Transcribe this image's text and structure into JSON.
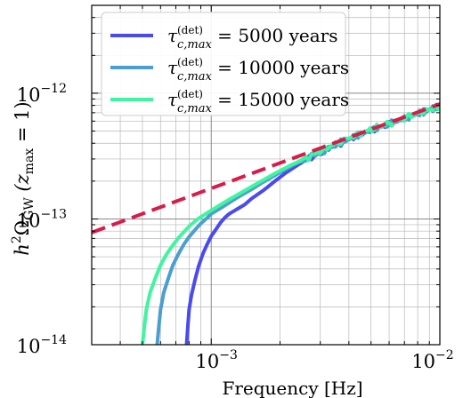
{
  "chart_data": {
    "type": "line",
    "title": "",
    "xlabel": "Frequency [Hz]",
    "ylabel": "h²Ω_GW (z_max = 1)",
    "ylabel_parts": {
      "main": "h",
      "sup": "2",
      "omega": "Ω",
      "sub": "GW",
      "paren": "(z",
      "paren_sub": "max",
      "paren_rest": " = 1)"
    },
    "x_scale": "log",
    "y_scale": "log",
    "xlim": [
      0.0003,
      0.01
    ],
    "ylim": [
      1e-14,
      5e-12
    ],
    "x_ticks": [
      {
        "value": 0.001,
        "base": "10",
        "exp": "−3"
      },
      {
        "value": 0.01,
        "base": "10",
        "exp": "−2"
      }
    ],
    "y_ticks": [
      {
        "value": 1e-14,
        "base": "10",
        "exp": "−14"
      },
      {
        "value": 1e-13,
        "base": "10",
        "exp": "−13"
      },
      {
        "value": 1e-12,
        "base": "10",
        "exp": "−12"
      }
    ],
    "grid": true,
    "legend_position": "top-left",
    "series": [
      {
        "name": "τc,max(det) = 5000 years",
        "label_parts": {
          "value": "5000 years"
        },
        "color": "#4a4af0",
        "points": [
          [
            0.00078,
            1e-14
          ],
          [
            0.00079,
            1.4e-14
          ],
          [
            0.0008,
            1.9e-14
          ],
          [
            0.00082,
            2.5e-14
          ],
          [
            0.00085,
            3.3e-14
          ],
          [
            0.00088,
            4.2e-14
          ],
          [
            0.00092,
            5.3e-14
          ],
          [
            0.00096,
            6.3e-14
          ],
          [
            0.001,
            7.3e-14
          ],
          [
            0.00106,
            8.5e-14
          ],
          [
            0.0011,
            9.4e-14
          ],
          [
            0.00115,
            1.03e-13
          ],
          [
            0.0012,
            1.1e-13
          ],
          [
            0.0013,
            1.2e-13
          ],
          [
            0.0014,
            1.3e-13
          ],
          [
            0.0015,
            1.45e-13
          ],
          [
            0.0017,
            1.7e-13
          ],
          [
            0.0019,
            2e-13
          ],
          [
            0.0021,
            2.3e-13
          ],
          [
            0.0024,
            2.7e-13
          ],
          [
            0.0027,
            3.05e-13
          ],
          [
            0.003,
            3.35e-13
          ],
          [
            0.0034,
            3.8e-13
          ],
          [
            0.004,
            4.3e-13
          ],
          [
            0.0046,
            4.8e-13
          ],
          [
            0.0053,
            5.3e-13
          ],
          [
            0.006,
            5.7e-13
          ],
          [
            0.007,
            6.3e-13
          ],
          [
            0.008,
            6.9e-13
          ],
          [
            0.009,
            7.4e-13
          ],
          [
            0.01,
            7.9e-13
          ]
        ]
      },
      {
        "name": "τc,max(det) = 10000 years",
        "label_parts": {
          "value": "10000 years"
        },
        "color": "#4a9fd0",
        "points": [
          [
            0.00058,
            1e-14
          ],
          [
            0.00059,
            1.4e-14
          ],
          [
            0.0006,
            1.9e-14
          ],
          [
            0.00062,
            2.6e-14
          ],
          [
            0.00065,
            3.4e-14
          ],
          [
            0.00068,
            4.3e-14
          ],
          [
            0.00072,
            5.3e-14
          ],
          [
            0.00076,
            6.3e-14
          ],
          [
            0.0008,
            7.2e-14
          ],
          [
            0.00085,
            8.2e-14
          ],
          [
            0.0009,
            9.2e-14
          ],
          [
            0.00096,
            1.02e-13
          ],
          [
            0.001,
            1.1e-13
          ],
          [
            0.0011,
            1.22e-13
          ],
          [
            0.0012,
            1.35e-13
          ],
          [
            0.0013,
            1.48e-13
          ],
          [
            0.0015,
            1.72e-13
          ],
          [
            0.0017,
            1.98e-13
          ],
          [
            0.002,
            2.35e-13
          ],
          [
            0.0023,
            2.7e-13
          ],
          [
            0.0027,
            3.1e-13
          ],
          [
            0.003,
            3.4e-13
          ],
          [
            0.0034,
            3.8e-13
          ],
          [
            0.004,
            4.35e-13
          ],
          [
            0.0046,
            4.8e-13
          ],
          [
            0.0053,
            5.3e-13
          ],
          [
            0.006,
            5.7e-13
          ],
          [
            0.007,
            6.3e-13
          ],
          [
            0.008,
            6.9e-13
          ],
          [
            0.009,
            7.4e-13
          ],
          [
            0.01,
            7.9e-13
          ]
        ]
      },
      {
        "name": "τc,max(det) = 15000 years",
        "label_parts": {
          "value": "15000 years"
        },
        "color": "#40f5a0",
        "points": [
          [
            0.0005,
            1e-14
          ],
          [
            0.00051,
            1.4e-14
          ],
          [
            0.00052,
            1.9e-14
          ],
          [
            0.00054,
            2.6e-14
          ],
          [
            0.00057,
            3.4e-14
          ],
          [
            0.0006,
            4.3e-14
          ],
          [
            0.00064,
            5.3e-14
          ],
          [
            0.00068,
            6.2e-14
          ],
          [
            0.00072,
            7.1e-14
          ],
          [
            0.00077,
            8.1e-14
          ],
          [
            0.00082,
            9.1e-14
          ],
          [
            0.00088,
            1.01e-13
          ],
          [
            0.00094,
            1.09e-13
          ],
          [
            0.001,
            1.17e-13
          ],
          [
            0.0011,
            1.3e-13
          ],
          [
            0.0012,
            1.43e-13
          ],
          [
            0.0014,
            1.68e-13
          ],
          [
            0.0016,
            1.93e-13
          ],
          [
            0.0019,
            2.3e-13
          ],
          [
            0.0022,
            2.65e-13
          ],
          [
            0.0026,
            3.05e-13
          ],
          [
            0.003,
            3.45e-13
          ],
          [
            0.0034,
            3.85e-13
          ],
          [
            0.004,
            4.4e-13
          ],
          [
            0.0046,
            4.85e-13
          ],
          [
            0.0053,
            5.35e-13
          ],
          [
            0.006,
            5.75e-13
          ],
          [
            0.007,
            6.35e-13
          ],
          [
            0.008,
            6.9e-13
          ],
          [
            0.009,
            7.4e-13
          ],
          [
            0.01,
            7.9e-13
          ]
        ]
      },
      {
        "name": "",
        "color": "#d81b4a",
        "dashed": true,
        "points": [
          [
            0.0003,
            7.8e-14
          ],
          [
            0.01,
            8.2e-13
          ]
        ]
      }
    ],
    "legend_common": {
      "tau": "τ",
      "sup": "(det)",
      "sub": "c,max",
      "eq": " = "
    }
  }
}
